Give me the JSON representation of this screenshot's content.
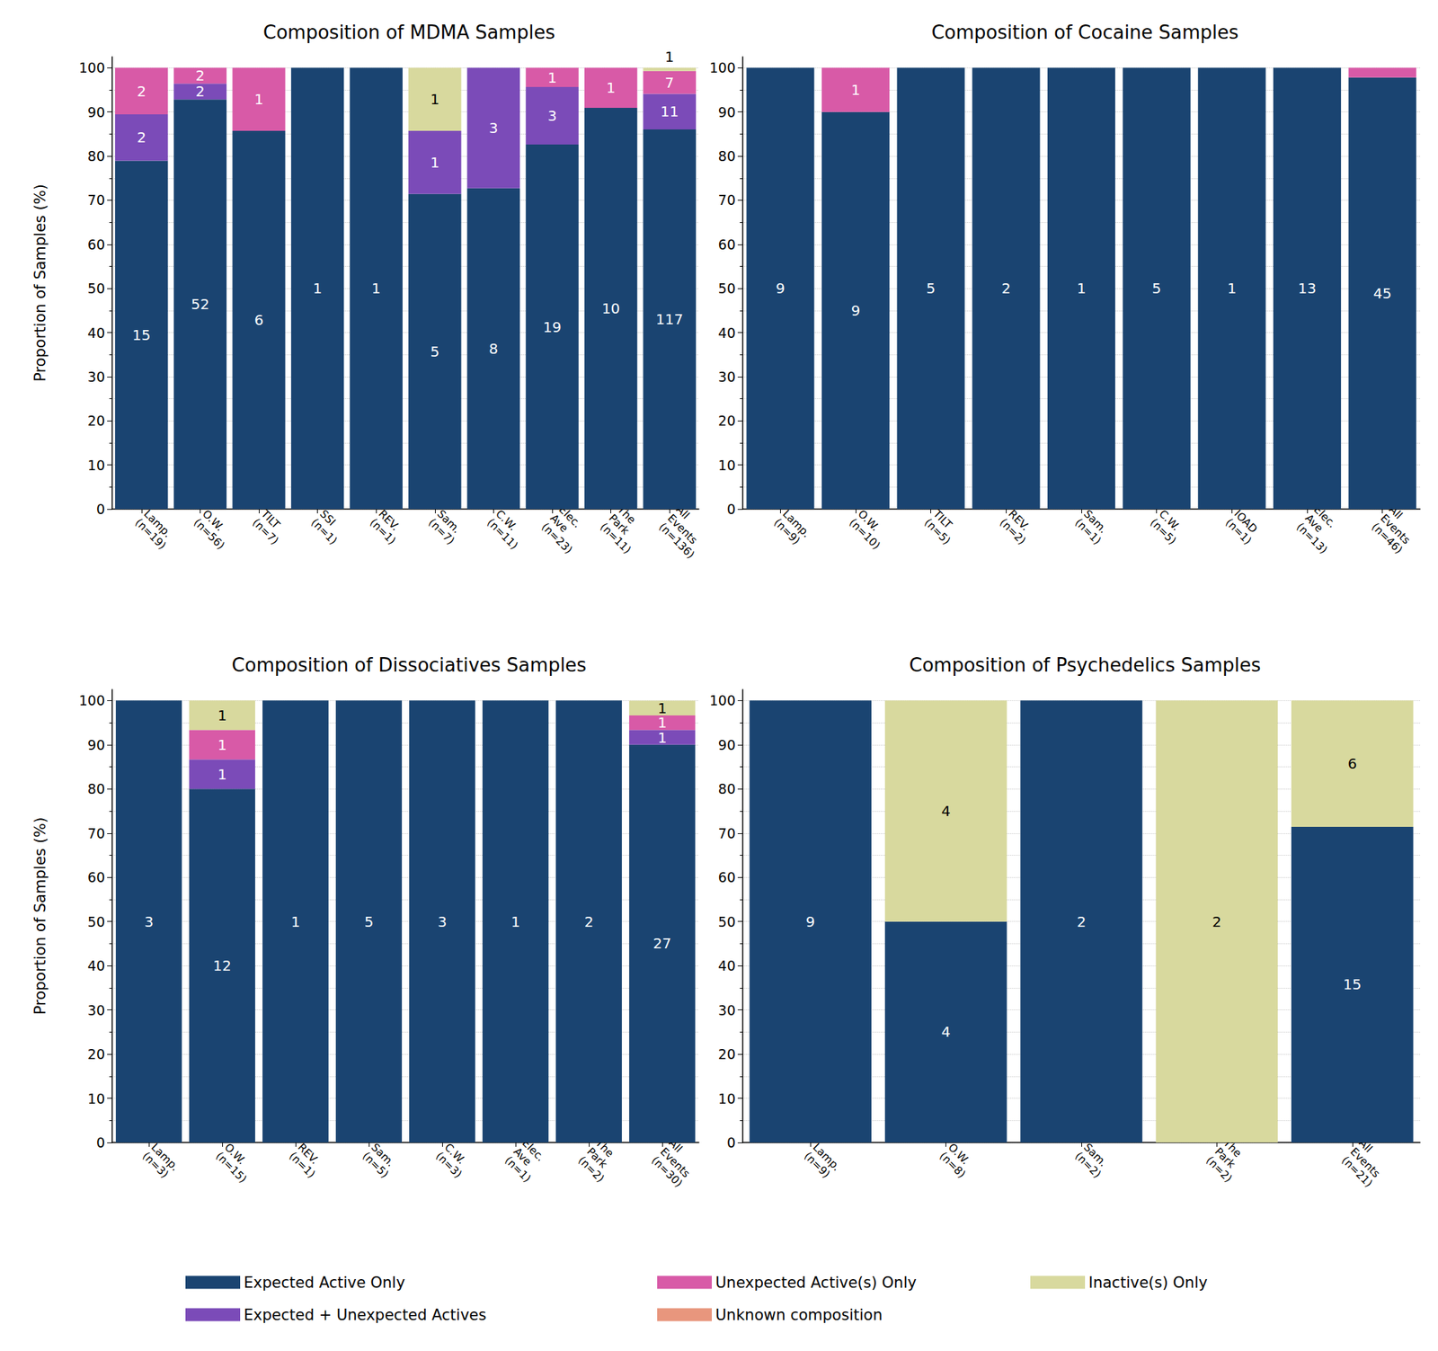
{
  "chart_data": [
    {
      "type": "bar",
      "title": "Composition of MDMA Samples",
      "y_label": "Proportion of Samples (%)",
      "categories": [
        "Lamp.\n(n=19)",
        "O.W.\n(n=56)",
        "TILT\n(n=7)",
        "SSI\n(n=1)",
        "REV.\n(n=1)",
        "Sam.\n(n=7)",
        "C.W.\n(n=11)",
        "Elec.\nAve\n(n=23)",
        "The\nPark\n(n=11)",
        "All\nEvents\n(n=136)"
      ],
      "series": [
        {
          "name": "Expected Active Only",
          "color": "#1a4471",
          "values": [
            78.95,
            92.86,
            85.71,
            100,
            100,
            71.43,
            72.73,
            82.61,
            90.91,
            86.03
          ],
          "counts": [
            15,
            52,
            6,
            1,
            1,
            5,
            8,
            19,
            10,
            117
          ]
        },
        {
          "name": "Expected + Unexpected Actives",
          "color": "#7b4bb8",
          "values": [
            10.53,
            3.57,
            0,
            0,
            0,
            14.29,
            27.27,
            13.04,
            0,
            8.09
          ],
          "counts": [
            2,
            2,
            null,
            null,
            null,
            1,
            3,
            3,
            null,
            11
          ]
        },
        {
          "name": "Unexpected Active(s) Only",
          "color": "#d85aa7",
          "values": [
            10.53,
            3.57,
            14.29,
            0,
            0,
            0,
            0,
            4.35,
            9.09,
            5.15
          ],
          "counts": [
            2,
            2,
            1,
            null,
            null,
            null,
            null,
            1,
            1,
            7
          ]
        },
        {
          "name": "Unknown composition",
          "color": "#e8967d",
          "values": [
            0,
            0,
            0,
            0,
            0,
            0,
            0,
            0,
            0,
            0
          ],
          "counts": [
            null,
            null,
            null,
            null,
            null,
            null,
            null,
            null,
            null,
            null
          ]
        },
        {
          "name": "Inactive(s) Only",
          "color": "#d8d99e",
          "values": [
            0,
            0,
            0,
            0,
            0,
            14.29,
            0,
            0,
            0,
            0.74
          ],
          "counts": [
            null,
            null,
            null,
            null,
            null,
            1,
            null,
            null,
            null,
            1
          ]
        }
      ],
      "ylim": [
        0,
        102.5
      ],
      "yticks": [
        0,
        10,
        20,
        30,
        40,
        50,
        60,
        70,
        80,
        90,
        100
      ],
      "grid": true,
      "stacked": true,
      "legend": "bottom"
    },
    {
      "type": "bar",
      "title": "Composition of Cocaine Samples",
      "y_label": "Proportion of Samples (%)",
      "categories": [
        "Lamp.\n(n=9)",
        "O.W.\n(n=10)",
        "TILT\n(n=5)",
        "REV.\n(n=2)",
        "Sam.\n(n=1)",
        "C.W.\n(n=5)",
        "IOAD\n(n=1)",
        "Elec.\nAve\n(n=13)",
        "All\nEvents\n(n=46)"
      ],
      "series": [
        {
          "name": "Expected Active Only",
          "color": "#1a4471",
          "values": [
            100,
            90,
            100,
            100,
            100,
            100,
            100,
            100,
            97.83
          ],
          "counts": [
            9,
            9,
            5,
            2,
            1,
            5,
            1,
            13,
            45
          ]
        },
        {
          "name": "Expected + Unexpected Actives",
          "color": "#7b4bb8",
          "values": [
            0,
            0,
            0,
            0,
            0,
            0,
            0,
            0,
            0
          ],
          "counts": [
            null,
            null,
            null,
            null,
            null,
            null,
            null,
            null,
            null
          ]
        },
        {
          "name": "Unexpected Active(s) Only",
          "color": "#d85aa7",
          "values": [
            0,
            10,
            0,
            0,
            0,
            0,
            0,
            0,
            2.17
          ],
          "counts": [
            null,
            1,
            null,
            null,
            null,
            null,
            null,
            null,
            1
          ]
        },
        {
          "name": "Unknown composition",
          "color": "#e8967d",
          "values": [
            0,
            0,
            0,
            0,
            0,
            0,
            0,
            0,
            0
          ],
          "counts": [
            null,
            null,
            null,
            null,
            null,
            null,
            null,
            null,
            null
          ]
        },
        {
          "name": "Inactive(s) Only",
          "color": "#d8d99e",
          "values": [
            0,
            0,
            0,
            0,
            0,
            0,
            0,
            0,
            0
          ],
          "counts": [
            null,
            null,
            null,
            null,
            null,
            null,
            null,
            null,
            null
          ]
        }
      ],
      "ylim": [
        0,
        102.5
      ],
      "yticks": [
        0,
        10,
        20,
        30,
        40,
        50,
        60,
        70,
        80,
        90,
        100
      ],
      "grid": true,
      "stacked": true,
      "legend": "bottom"
    },
    {
      "type": "bar",
      "title": "Composition of Dissociatives Samples",
      "y_label": "Proportion of Samples (%)",
      "categories": [
        "Lamp.\n(n=3)",
        "O.W.\n(n=15)",
        "REV.\n(n=1)",
        "Sam.\n(n=5)",
        "C.W.\n(n=3)",
        "Elec.\nAve\n(n=1)",
        "The\nPark\n(n=2)",
        "All\nEvents\n(n=30)"
      ],
      "series": [
        {
          "name": "Expected Active Only",
          "color": "#1a4471",
          "values": [
            100,
            80,
            100,
            100,
            100,
            100,
            100,
            90
          ],
          "counts": [
            3,
            12,
            1,
            5,
            3,
            1,
            2,
            27
          ]
        },
        {
          "name": "Expected + Unexpected Actives",
          "color": "#7b4bb8",
          "values": [
            0,
            6.67,
            0,
            0,
            0,
            0,
            0,
            3.33
          ],
          "counts": [
            null,
            1,
            null,
            null,
            null,
            null,
            null,
            1
          ]
        },
        {
          "name": "Unexpected Active(s) Only",
          "color": "#d85aa7",
          "values": [
            0,
            6.67,
            0,
            0,
            0,
            0,
            0,
            3.33
          ],
          "counts": [
            null,
            1,
            null,
            null,
            null,
            null,
            null,
            1
          ]
        },
        {
          "name": "Unknown composition",
          "color": "#e8967d",
          "values": [
            0,
            0,
            0,
            0,
            0,
            0,
            0,
            0
          ],
          "counts": [
            null,
            null,
            null,
            null,
            null,
            null,
            null,
            null
          ]
        },
        {
          "name": "Inactive(s) Only",
          "color": "#d8d99e",
          "values": [
            0,
            6.67,
            0,
            0,
            0,
            0,
            0,
            3.33
          ],
          "counts": [
            null,
            1,
            null,
            null,
            null,
            null,
            null,
            1
          ]
        }
      ],
      "ylim": [
        0,
        102.5
      ],
      "yticks": [
        0,
        10,
        20,
        30,
        40,
        50,
        60,
        70,
        80,
        90,
        100
      ],
      "grid": true,
      "stacked": true,
      "legend": "bottom"
    },
    {
      "type": "bar",
      "title": "Composition of Psychedelics Samples",
      "y_label": "Proportion of Samples (%)",
      "categories": [
        "Lamp.\n(n=9)",
        "O.W.\n(n=8)",
        "Sam.\n(n=2)",
        "The\nPark\n(n=2)",
        "All\nEvents\n(n=21)"
      ],
      "series": [
        {
          "name": "Expected Active Only",
          "color": "#1a4471",
          "values": [
            100,
            50,
            100,
            0,
            71.43
          ],
          "counts": [
            9,
            4,
            2,
            null,
            15
          ]
        },
        {
          "name": "Expected + Unexpected Actives",
          "color": "#7b4bb8",
          "values": [
            0,
            0,
            0,
            0,
            0
          ],
          "counts": [
            null,
            null,
            null,
            null,
            null
          ]
        },
        {
          "name": "Unexpected Active(s) Only",
          "color": "#d85aa7",
          "values": [
            0,
            0,
            0,
            0,
            0
          ],
          "counts": [
            null,
            null,
            null,
            null,
            null
          ]
        },
        {
          "name": "Unknown composition",
          "color": "#e8967d",
          "values": [
            0,
            0,
            0,
            0,
            0
          ],
          "counts": [
            null,
            null,
            null,
            null,
            null
          ]
        },
        {
          "name": "Inactive(s) Only",
          "color": "#d8d99e",
          "values": [
            0,
            50,
            0,
            100,
            28.57
          ],
          "counts": [
            null,
            4,
            null,
            2,
            6
          ]
        }
      ],
      "ylim": [
        0,
        102.5
      ],
      "yticks": [
        0,
        10,
        20,
        30,
        40,
        50,
        60,
        70,
        80,
        90,
        100
      ],
      "grid": true,
      "stacked": true,
      "legend": "bottom"
    }
  ]
}
